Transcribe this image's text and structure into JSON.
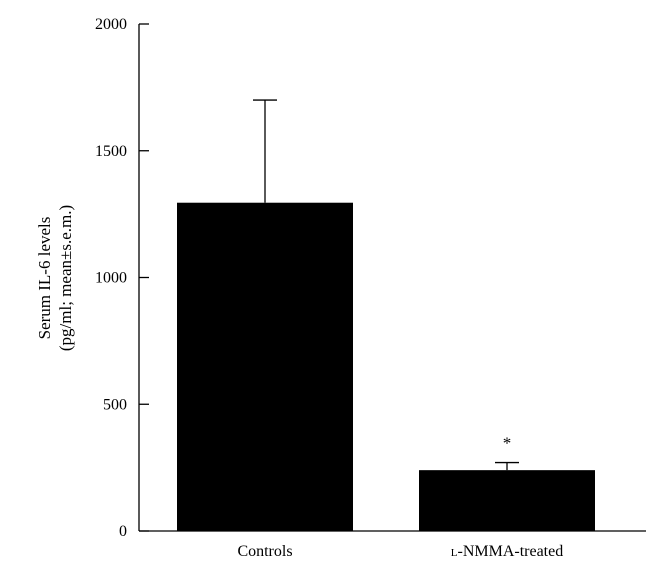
{
  "chart_data": {
    "type": "bar",
    "title": "",
    "ylabel_lines": [
      "Serum IL-6 levels",
      "(pg/ml; mean±s.e.m.)"
    ],
    "ylim": [
      0,
      2000
    ],
    "yticks": [
      0,
      500,
      1000,
      1500,
      2000
    ],
    "ytick_labels": [
      "0",
      "500",
      "1000",
      "1500",
      "2000"
    ],
    "categories": [
      "Controls",
      "L-NMMA-treated"
    ],
    "category_display": [
      {
        "prefix": "",
        "prefix_smallcaps": "",
        "text": "Controls"
      },
      {
        "prefix": "",
        "prefix_smallcaps": "l",
        "text": "-NMMA-treated"
      }
    ],
    "values": [
      1295,
      240
    ],
    "errors": [
      405,
      30
    ],
    "annotations": [
      "",
      "*"
    ],
    "bar_color": "#000000",
    "grid": false,
    "legend": "none"
  }
}
